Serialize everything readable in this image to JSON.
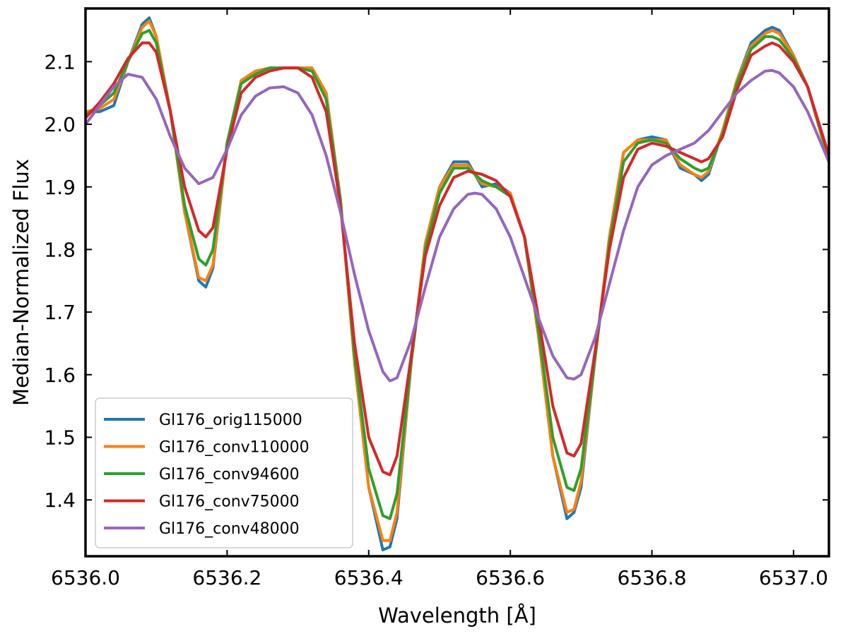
{
  "chart_data": {
    "type": "line",
    "title": "",
    "xlabel": "Wavelength [Å]",
    "ylabel": "Median-Normalized Flux",
    "xlim": [
      6536.0,
      6537.05
    ],
    "ylim": [
      1.31,
      2.185
    ],
    "x_ticks": [
      6536.0,
      6536.2,
      6536.4,
      6536.6,
      6536.8,
      6537.0
    ],
    "x_tick_labels": [
      "6536.0",
      "6536.2",
      "6536.4",
      "6536.6",
      "6536.8",
      "6537.0"
    ],
    "y_ticks": [
      1.4,
      1.5,
      1.6,
      1.7,
      1.8,
      1.9,
      2.0,
      2.1
    ],
    "y_tick_labels": [
      "1.4",
      "1.5",
      "1.6",
      "1.7",
      "1.8",
      "1.9",
      "2.0",
      "2.1"
    ],
    "grid": false,
    "legend_position": "lower-left",
    "series": [
      {
        "name": "Gl176_orig115000",
        "color": "#1f77b4",
        "x": [
          6536.0,
          6536.02,
          6536.04,
          6536.06,
          6536.08,
          6536.09,
          6536.1,
          6536.12,
          6536.14,
          6536.16,
          6536.17,
          6536.18,
          6536.2,
          6536.22,
          6536.24,
          6536.26,
          6536.28,
          6536.3,
          6536.32,
          6536.34,
          6536.36,
          6536.38,
          6536.4,
          6536.42,
          6536.43,
          6536.44,
          6536.46,
          6536.48,
          6536.5,
          6536.52,
          6536.54,
          6536.56,
          6536.58,
          6536.6,
          6536.62,
          6536.64,
          6536.66,
          6536.68,
          6536.69,
          6536.7,
          6536.72,
          6536.74,
          6536.76,
          6536.78,
          6536.8,
          6536.82,
          6536.84,
          6536.86,
          6536.87,
          6536.88,
          6536.9,
          6536.92,
          6536.94,
          6536.96,
          6536.97,
          6536.98,
          6537.0,
          6537.02,
          6537.05
        ],
        "y": [
          2.02,
          2.02,
          2.03,
          2.1,
          2.16,
          2.17,
          2.14,
          2.02,
          1.86,
          1.75,
          1.74,
          1.77,
          1.97,
          2.07,
          2.085,
          2.09,
          2.09,
          2.09,
          2.09,
          2.05,
          1.88,
          1.62,
          1.42,
          1.32,
          1.325,
          1.37,
          1.62,
          1.81,
          1.9,
          1.94,
          1.94,
          1.9,
          1.905,
          1.89,
          1.82,
          1.66,
          1.47,
          1.37,
          1.38,
          1.42,
          1.63,
          1.82,
          1.955,
          1.975,
          1.98,
          1.975,
          1.93,
          1.92,
          1.91,
          1.92,
          1.99,
          2.07,
          2.13,
          2.15,
          2.155,
          2.15,
          2.11,
          2.06,
          1.94
        ]
      },
      {
        "name": "Gl176_conv110000",
        "color": "#ff7f0e",
        "x": [
          6536.0,
          6536.02,
          6536.04,
          6536.06,
          6536.08,
          6536.09,
          6536.1,
          6536.12,
          6536.14,
          6536.16,
          6536.17,
          6536.18,
          6536.2,
          6536.22,
          6536.24,
          6536.26,
          6536.28,
          6536.3,
          6536.32,
          6536.34,
          6536.36,
          6536.38,
          6536.4,
          6536.42,
          6536.43,
          6536.44,
          6536.46,
          6536.48,
          6536.5,
          6536.52,
          6536.54,
          6536.56,
          6536.58,
          6536.6,
          6536.62,
          6536.64,
          6536.66,
          6536.68,
          6536.69,
          6536.7,
          6536.72,
          6536.74,
          6536.76,
          6536.78,
          6536.8,
          6536.82,
          6536.84,
          6536.86,
          6536.87,
          6536.88,
          6536.9,
          6536.92,
          6536.94,
          6536.96,
          6536.97,
          6536.98,
          6537.0,
          6537.02,
          6537.05
        ],
        "y": [
          2.02,
          2.025,
          2.04,
          2.1,
          2.155,
          2.165,
          2.14,
          2.02,
          1.86,
          1.755,
          1.75,
          1.775,
          1.97,
          2.07,
          2.085,
          2.09,
          2.09,
          2.09,
          2.09,
          2.05,
          1.88,
          1.62,
          1.42,
          1.335,
          1.335,
          1.38,
          1.62,
          1.81,
          1.9,
          1.935,
          1.935,
          1.905,
          1.9,
          1.89,
          1.82,
          1.66,
          1.47,
          1.38,
          1.385,
          1.43,
          1.63,
          1.82,
          1.955,
          1.975,
          1.975,
          1.975,
          1.935,
          1.92,
          1.915,
          1.925,
          1.99,
          2.07,
          2.125,
          2.145,
          2.15,
          2.145,
          2.11,
          2.06,
          1.94
        ]
      },
      {
        "name": "Gl176_conv94600",
        "color": "#2ca02c",
        "x": [
          6536.0,
          6536.02,
          6536.04,
          6536.06,
          6536.08,
          6536.09,
          6536.1,
          6536.12,
          6536.14,
          6536.16,
          6536.17,
          6536.18,
          6536.2,
          6536.22,
          6536.24,
          6536.26,
          6536.28,
          6536.3,
          6536.32,
          6536.34,
          6536.36,
          6536.38,
          6536.4,
          6536.42,
          6536.43,
          6536.44,
          6536.46,
          6536.48,
          6536.5,
          6536.52,
          6536.54,
          6536.56,
          6536.58,
          6536.6,
          6536.62,
          6536.64,
          6536.66,
          6536.68,
          6536.69,
          6536.7,
          6536.72,
          6536.74,
          6536.76,
          6536.78,
          6536.8,
          6536.82,
          6536.84,
          6536.86,
          6536.87,
          6536.88,
          6536.9,
          6536.92,
          6536.94,
          6536.96,
          6536.97,
          6536.98,
          6537.0,
          6537.02,
          6537.05
        ],
        "y": [
          2.015,
          2.03,
          2.05,
          2.1,
          2.145,
          2.15,
          2.13,
          2.02,
          1.87,
          1.785,
          1.775,
          1.8,
          1.97,
          2.065,
          2.08,
          2.09,
          2.09,
          2.09,
          2.085,
          2.04,
          1.88,
          1.63,
          1.45,
          1.375,
          1.37,
          1.41,
          1.62,
          1.8,
          1.89,
          1.93,
          1.93,
          1.91,
          1.9,
          1.885,
          1.82,
          1.67,
          1.5,
          1.42,
          1.415,
          1.45,
          1.63,
          1.81,
          1.94,
          1.97,
          1.975,
          1.97,
          1.945,
          1.93,
          1.925,
          1.93,
          1.985,
          2.065,
          2.12,
          2.14,
          2.14,
          2.135,
          2.105,
          2.06,
          1.945
        ]
      },
      {
        "name": "Gl176_conv75000",
        "color": "#d62728",
        "x": [
          6536.0,
          6536.02,
          6536.04,
          6536.06,
          6536.08,
          6536.09,
          6536.1,
          6536.12,
          6536.14,
          6536.16,
          6536.17,
          6536.18,
          6536.2,
          6536.22,
          6536.24,
          6536.26,
          6536.28,
          6536.3,
          6536.32,
          6536.34,
          6536.36,
          6536.38,
          6536.4,
          6536.42,
          6536.43,
          6536.44,
          6536.46,
          6536.48,
          6536.5,
          6536.52,
          6536.54,
          6536.56,
          6536.58,
          6536.6,
          6536.62,
          6536.64,
          6536.66,
          6536.68,
          6536.69,
          6536.7,
          6536.72,
          6536.74,
          6536.76,
          6536.78,
          6536.8,
          6536.82,
          6536.84,
          6536.86,
          6536.87,
          6536.88,
          6536.9,
          6536.92,
          6536.94,
          6536.96,
          6536.97,
          6536.98,
          6537.0,
          6537.02,
          6537.05
        ],
        "y": [
          2.01,
          2.035,
          2.065,
          2.105,
          2.13,
          2.13,
          2.115,
          2.02,
          1.9,
          1.83,
          1.82,
          1.835,
          1.96,
          2.05,
          2.075,
          2.085,
          2.09,
          2.09,
          2.075,
          2.02,
          1.87,
          1.65,
          1.5,
          1.445,
          1.44,
          1.47,
          1.63,
          1.79,
          1.87,
          1.915,
          1.925,
          1.92,
          1.91,
          1.885,
          1.82,
          1.69,
          1.55,
          1.475,
          1.47,
          1.49,
          1.64,
          1.8,
          1.915,
          1.96,
          1.97,
          1.965,
          1.955,
          1.945,
          1.94,
          1.945,
          1.98,
          2.055,
          2.11,
          2.125,
          2.13,
          2.125,
          2.1,
          2.06,
          1.95
        ]
      },
      {
        "name": "Gl176_conv48000",
        "color": "#9467bd",
        "x": [
          6536.0,
          6536.02,
          6536.04,
          6536.06,
          6536.08,
          6536.1,
          6536.12,
          6536.14,
          6536.16,
          6536.18,
          6536.2,
          6536.22,
          6536.24,
          6536.26,
          6536.28,
          6536.3,
          6536.32,
          6536.34,
          6536.36,
          6536.38,
          6536.4,
          6536.42,
          6536.43,
          6536.44,
          6536.46,
          6536.48,
          6536.5,
          6536.52,
          6536.54,
          6536.55,
          6536.56,
          6536.58,
          6536.6,
          6536.62,
          6536.64,
          6536.66,
          6536.68,
          6536.69,
          6536.7,
          6536.72,
          6536.74,
          6536.76,
          6536.78,
          6536.8,
          6536.82,
          6536.84,
          6536.86,
          6536.88,
          6536.9,
          6536.92,
          6536.94,
          6536.96,
          6536.97,
          6536.98,
          6537.0,
          6537.02,
          6537.05
        ],
        "y": [
          2.0,
          2.03,
          2.06,
          2.08,
          2.075,
          2.04,
          1.98,
          1.93,
          1.905,
          1.915,
          1.96,
          2.015,
          2.045,
          2.058,
          2.06,
          2.05,
          2.015,
          1.95,
          1.86,
          1.76,
          1.67,
          1.605,
          1.59,
          1.595,
          1.655,
          1.74,
          1.82,
          1.865,
          1.888,
          1.89,
          1.888,
          1.865,
          1.82,
          1.755,
          1.69,
          1.63,
          1.595,
          1.593,
          1.6,
          1.66,
          1.745,
          1.83,
          1.9,
          1.935,
          1.95,
          1.96,
          1.97,
          1.99,
          2.02,
          2.05,
          2.07,
          2.085,
          2.086,
          2.082,
          2.06,
          2.02,
          1.94
        ]
      }
    ]
  }
}
